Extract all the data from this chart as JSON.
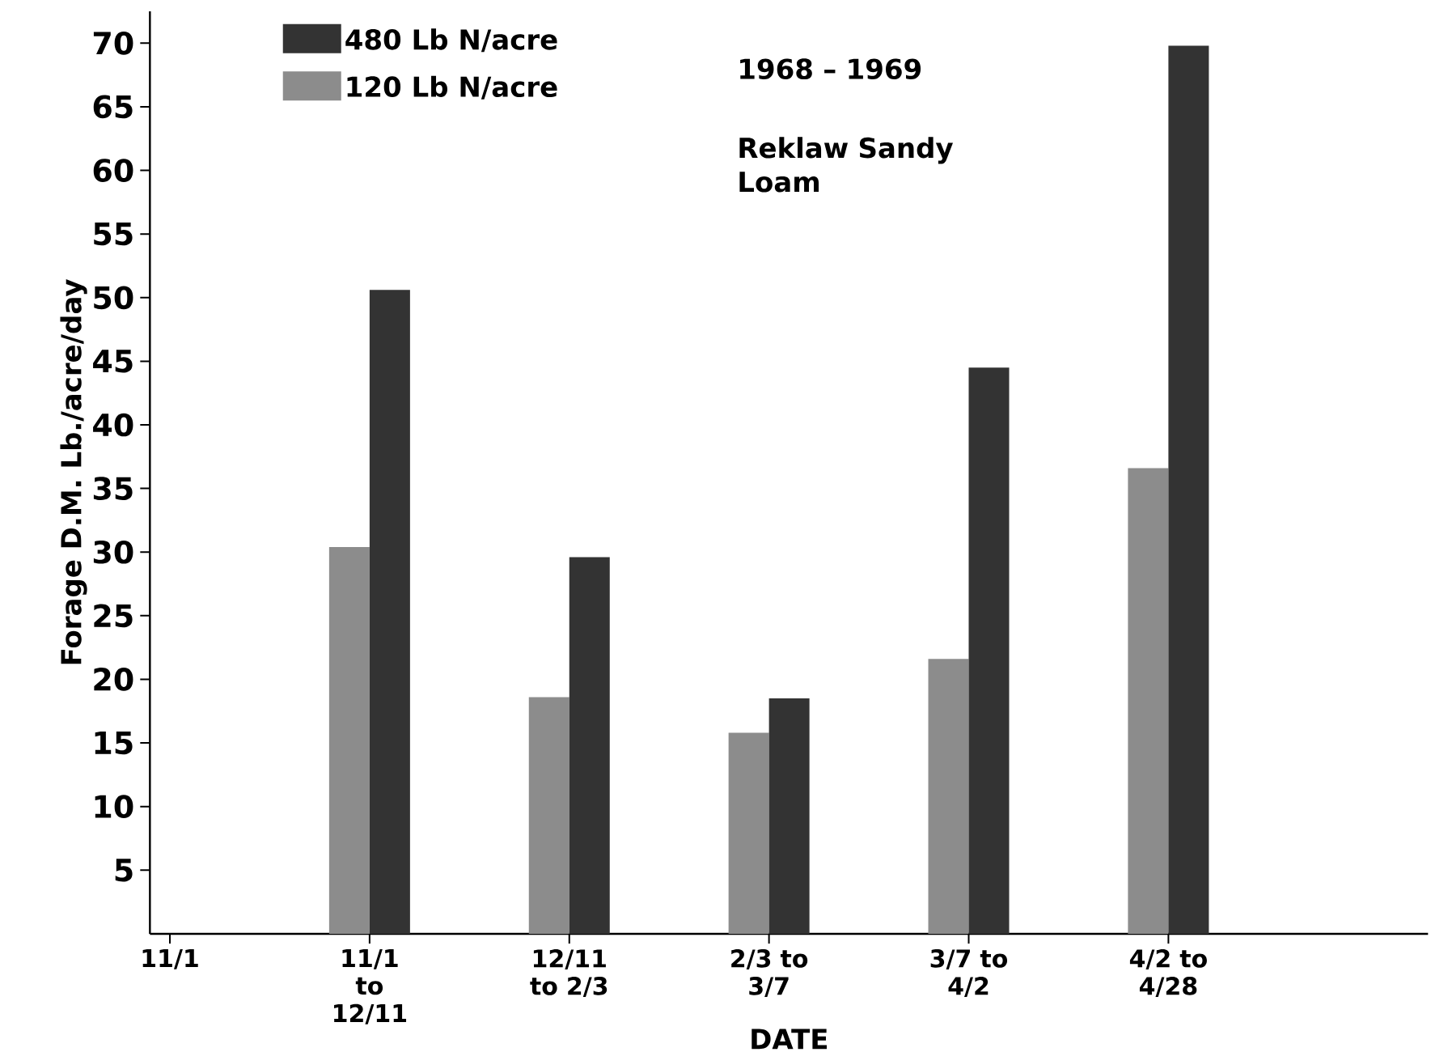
{
  "chart_data": {
    "type": "bar",
    "xlabel": "DATE",
    "ylabel": "Forage D.M. Lb./acre/day",
    "categories": [
      "11/1",
      "11/1 to 12/11",
      "12/11 to 2/3",
      "2/3 to 3/7",
      "3/7 to 4/2",
      "4/2 to 4/28"
    ],
    "series": [
      {
        "name": "120 Lb N/acre",
        "color": "#8c8c8c",
        "values": [
          null,
          30.4,
          18.6,
          15.8,
          21.6,
          36.6
        ]
      },
      {
        "name": "480 Lb N/acre",
        "color": "#333333",
        "values": [
          null,
          50.6,
          29.6,
          18.5,
          44.5,
          69.8
        ]
      }
    ],
    "ylim": [
      0,
      72.5
    ],
    "yticks": [
      5,
      10,
      15,
      20,
      25,
      30,
      35,
      40,
      45,
      50,
      55,
      60,
      65,
      70
    ],
    "grid": false,
    "legend": "top left",
    "annotations": [
      "1968 – 1969",
      "Reklaw Sandy Loam"
    ]
  }
}
